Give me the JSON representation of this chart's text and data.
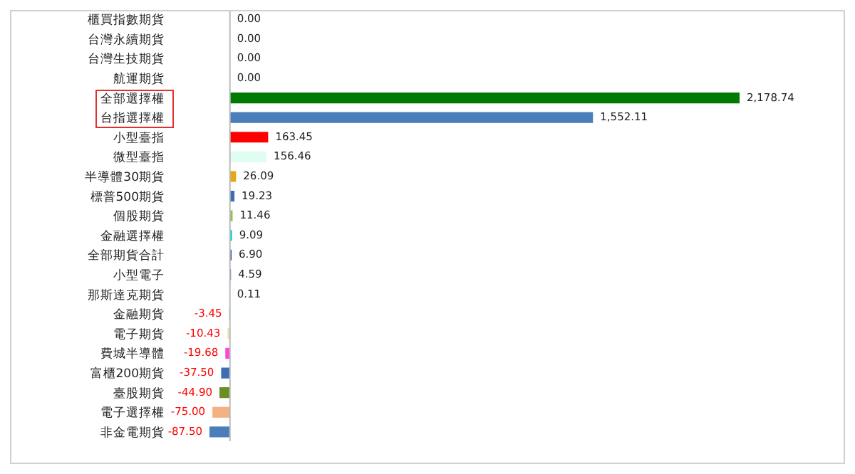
{
  "chart_data": {
    "type": "bar",
    "orientation": "horizontal",
    "categories": [
      "櫃買指數期貨",
      "台灣永續期貨",
      "台灣生技期貨",
      "航運期貨",
      "全部選擇權",
      "台指選擇權",
      "小型臺指",
      "微型臺指",
      "半導體30期貨",
      "標普500期貨",
      "個股期貨",
      "金融選擇權",
      "全部期貨合計",
      "小型電子",
      "那斯達克期貨",
      "金融期貨",
      "電子期貨",
      "費城半導體",
      "富櫃200期貨",
      "臺股期貨",
      "電子選擇權",
      "非金電期貨"
    ],
    "values": [
      0,
      0,
      0,
      0,
      2178.74,
      1552.11,
      163.45,
      156.46,
      26.09,
      19.23,
      11.46,
      9.09,
      6.9,
      4.59,
      0.11,
      -3.45,
      -10.43,
      -19.68,
      -37.5,
      -44.9,
      -75,
      -87.5
    ],
    "value_labels": [
      "0.00",
      "0.00",
      "0.00",
      "0.00",
      "2,178.74",
      "1,552.11",
      "163.45",
      "156.46",
      "26.09",
      "19.23",
      "11.46",
      "9.09",
      "6.90",
      "4.59",
      "0.11",
      "-3.45",
      "-10.43",
      "-19.68",
      "-37.50",
      "-44.90",
      "-75.00",
      "-87.50"
    ],
    "colors": [
      "#ffffff",
      "#ffffff",
      "#ffffff",
      "#ffffff",
      "#007a00",
      "#4a7ebb",
      "#ff0000",
      "#dffdf0",
      "#e6a817",
      "#3d6eb3",
      "#9bbb59",
      "#00d0e0",
      "#2f5597",
      "#3d6eb3",
      "#bbbbbb",
      "#33cccc",
      "#e8e8b0",
      "#ff44dd",
      "#3d6eb3",
      "#6b8e23",
      "#f4b183",
      "#4a7ebb"
    ],
    "tick_labels": "y"
  }
}
